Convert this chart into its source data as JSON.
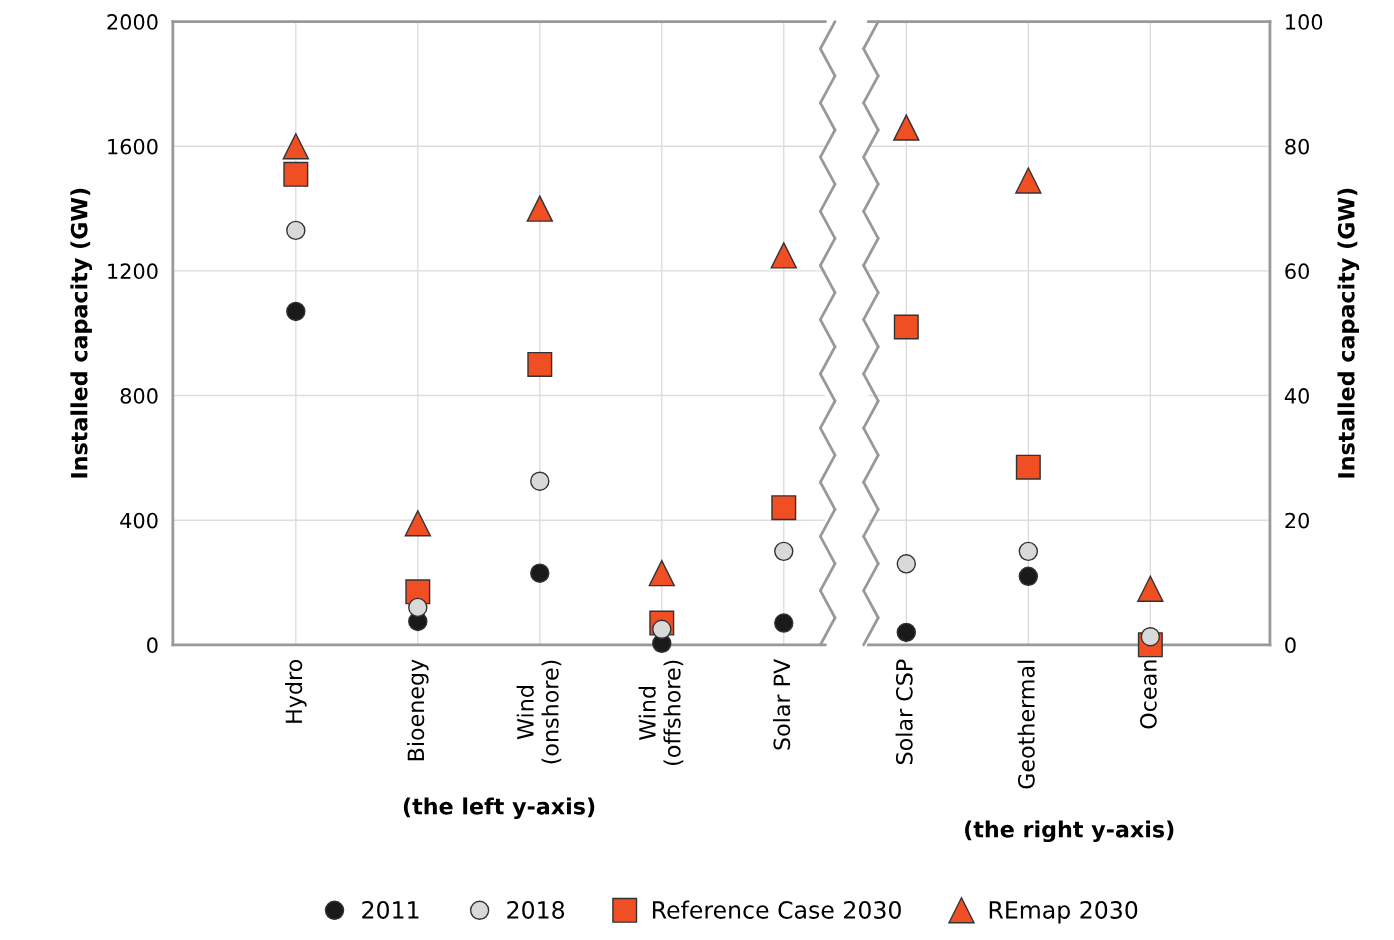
{
  "chart_data": [
    {
      "type": "scatter",
      "categories": [
        "Hydro",
        "Bioenegy",
        "Wind\n(onshore)",
        "Wind\n(offshore)",
        "Solar PV"
      ],
      "xlabel": "(the left y-axis)",
      "ylabel": "Installed capacity (GW)",
      "ylim": [
        0,
        2000
      ],
      "yticks": [
        0,
        400,
        800,
        1200,
        1600,
        2000
      ],
      "grid": true,
      "legend": "bottom",
      "series": [
        {
          "name": "2011",
          "color": "#1a1a1a",
          "marker": "circle",
          "values": [
            1070,
            75,
            230,
            5,
            70
          ]
        },
        {
          "name": "2018",
          "color": "#d9d9d9",
          "marker": "circle",
          "values": [
            1330,
            120,
            525,
            50,
            300
          ]
        },
        {
          "name": "Reference Case 2030",
          "color": "#f04e23",
          "marker": "square",
          "values": [
            1510,
            170,
            900,
            70,
            440
          ]
        },
        {
          "name": "REmap 2030",
          "color": "#f04e23",
          "marker": "triangle",
          "values": [
            1600,
            390,
            1400,
            230,
            1250
          ]
        }
      ]
    },
    {
      "type": "scatter",
      "categories": [
        "Solar CSP",
        "Geothermal",
        "Ocean"
      ],
      "xlabel": "(the right y-axis)",
      "y2label": "Installed capacity (GW)",
      "y2lim": [
        0,
        100
      ],
      "y2ticks": [
        0,
        20,
        40,
        60,
        80,
        100
      ],
      "grid": true,
      "series": [
        {
          "color": "#1a1a1a",
          "marker": "circle",
          "axis": "y2",
          "values": [
            2,
            11,
            null
          ]
        },
        {
          "color": "#d9d9d9",
          "marker": "circle",
          "axis": "y2",
          "values": [
            13,
            15,
            1.3
          ]
        },
        {
          "color": "#f04e23",
          "marker": "square",
          "axis": "y2",
          "values": [
            51,
            28.5,
            0
          ]
        },
        {
          "color": "#f04e23",
          "marker": "triangle",
          "axis": "y2",
          "values": [
            83,
            74.5,
            9
          ]
        }
      ]
    }
  ]
}
